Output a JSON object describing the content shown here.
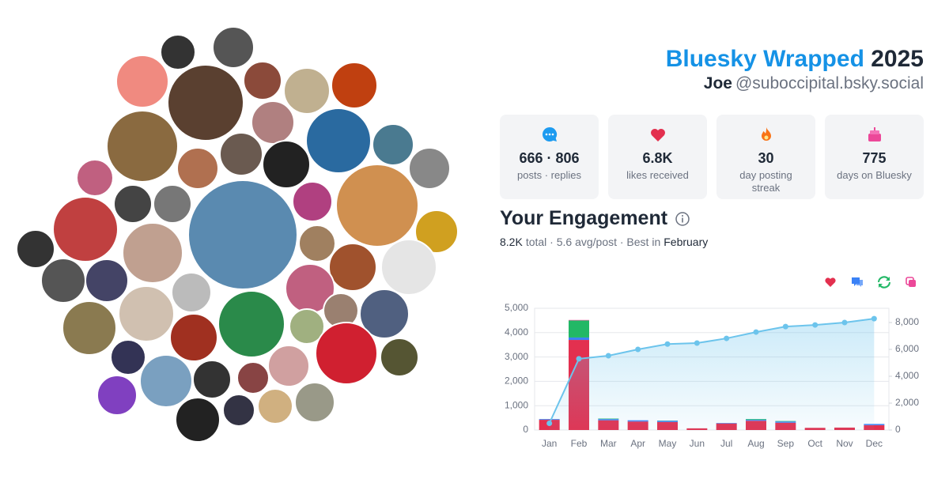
{
  "header": {
    "title": "Bluesky Wrapped",
    "year": "2025",
    "name": "Joe",
    "handle": "@suboccipital.bsky.social"
  },
  "stats": [
    {
      "value": "666 · 806",
      "label": "posts · replies"
    },
    {
      "value": "6.8K",
      "label": "likes received"
    },
    {
      "value": "30",
      "label": "day posting streak"
    },
    {
      "value": "775",
      "label": "days on Bluesky"
    }
  ],
  "engagement": {
    "title": "Your Engagement",
    "total": "8.2K",
    "summary": "total · 5.6 avg/post · Best in",
    "best": "February"
  },
  "chart_data": {
    "type": "bar",
    "stacked": true,
    "categories": [
      "Jan",
      "Feb",
      "Mar",
      "Apr",
      "May",
      "Jun",
      "Jul",
      "Aug",
      "Sep",
      "Oct",
      "Nov",
      "Dec"
    ],
    "series": [
      {
        "color": "#e3304f",
        "values": [
          420,
          3700,
          400,
          350,
          330,
          70,
          270,
          380,
          300,
          90,
          100,
          200
        ]
      },
      {
        "color": "#3b82f6",
        "values": [
          30,
          100,
          50,
          50,
          50,
          0,
          20,
          40,
          50,
          0,
          0,
          50
        ]
      },
      {
        "color": "#22b866",
        "values": [
          0,
          700,
          20,
          0,
          10,
          0,
          0,
          30,
          20,
          0,
          0,
          0
        ]
      },
      {
        "color": "#ec4899",
        "values": [
          0,
          20,
          0,
          0,
          0,
          0,
          0,
          0,
          0,
          0,
          0,
          0
        ]
      },
      {
        "type": "line",
        "axis": "y2",
        "color": "#6cc4ec",
        "values": [
          500,
          5300,
          5530,
          6000,
          6400,
          6470,
          6820,
          7290,
          7700,
          7820,
          8000,
          8290
        ]
      }
    ],
    "ylim": [
      0,
      5000
    ],
    "yticks": [
      0,
      {
        "value": 1000,
        "label": "1,000"
      },
      {
        "value": 2000,
        "label": "2,000"
      },
      {
        "value": 3000,
        "label": "3,000"
      },
      {
        "value": 4000,
        "label": "4,000"
      },
      {
        "value": 5000,
        "label": "5,000"
      }
    ],
    "y2lim": [
      0,
      9060
    ],
    "y2ticks": [
      0,
      {
        "value": 2000,
        "label": "2,000"
      },
      {
        "value": 4000,
        "label": "4,000"
      },
      {
        "value": 6000,
        "label": "6,000"
      },
      {
        "value": 8000,
        "label": "8,000"
      }
    ],
    "grid": true
  }
}
